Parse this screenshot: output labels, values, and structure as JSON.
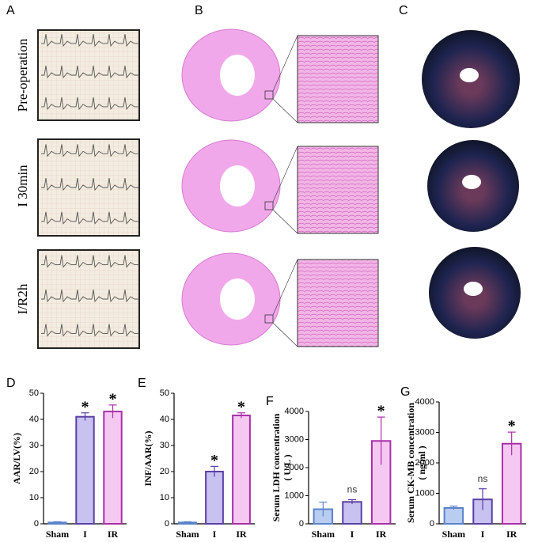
{
  "panels": {
    "A": "A",
    "B": "B",
    "C": "C",
    "rows": [
      "Pre-operation",
      "I 30min",
      "I/R2h"
    ]
  },
  "chart_data": [
    {
      "type": "bar",
      "panel_label": "D",
      "ylabel": "AAR/LV(%)",
      "categories": [
        "Sham",
        "I",
        "IR"
      ],
      "values": [
        0.5,
        41,
        43
      ],
      "errors": [
        0.3,
        1.5,
        2.5
      ],
      "ylim": [
        0,
        50
      ],
      "yticks": [
        0,
        10,
        20,
        30,
        40,
        50
      ],
      "colors": [
        "#b9cdf0",
        "#c8c2f0",
        "#f5c8f2"
      ],
      "edge_colors": [
        "#5b83c9",
        "#5b3fa6",
        "#a82fa8"
      ],
      "annotations": [
        {
          "index": 1,
          "text": "*"
        },
        {
          "index": 2,
          "text": "*"
        }
      ]
    },
    {
      "type": "bar",
      "panel_label": "E",
      "ylabel": "INF/AAR(%)",
      "categories": [
        "Sham",
        "I",
        "IR"
      ],
      "values": [
        0.5,
        20,
        41.5
      ],
      "errors": [
        0.3,
        2,
        1
      ],
      "ylim": [
        0,
        50
      ],
      "yticks": [
        0,
        10,
        20,
        30,
        40,
        50
      ],
      "colors": [
        "#b9cdf0",
        "#c8c2f0",
        "#f5c8f2"
      ],
      "edge_colors": [
        "#5b83c9",
        "#5b3fa6",
        "#a82fa8"
      ],
      "annotations": [
        {
          "index": 1,
          "text": "*"
        },
        {
          "index": 2,
          "text": "*"
        }
      ]
    },
    {
      "type": "bar",
      "panel_label": "F",
      "ylabel": "Serum LDH concentration",
      "ylabel_unit": "( U/L )",
      "categories": [
        "Sham",
        "I",
        "IR"
      ],
      "values": [
        520,
        780,
        2950
      ],
      "errors": [
        250,
        80,
        850
      ],
      "ylim": [
        0,
        4000
      ],
      "yticks": [
        0,
        1000,
        2000,
        3000,
        4000
      ],
      "colors": [
        "#b9cdf0",
        "#c8c2f0",
        "#f5c8f2"
      ],
      "edge_colors": [
        "#5b83c9",
        "#5b3fa6",
        "#a82fa8"
      ],
      "annotations": [
        {
          "index": 1,
          "text": "ns"
        },
        {
          "index": 2,
          "text": "*"
        }
      ]
    },
    {
      "type": "bar",
      "panel_label": "G",
      "ylabel": "Serum CK-MB concentration",
      "ylabel_unit": "( ng/ml )",
      "categories": [
        "Sham",
        "I",
        "IR"
      ],
      "values": [
        520,
        800,
        2630
      ],
      "errors": [
        60,
        350,
        380
      ],
      "ylim": [
        0,
        4000
      ],
      "yticks": [
        0,
        1000,
        2000,
        3000,
        4000
      ],
      "colors": [
        "#b9cdf0",
        "#c8c2f0",
        "#f5c8f2"
      ],
      "edge_colors": [
        "#5b83c9",
        "#5b3fa6",
        "#a82fa8"
      ],
      "annotations": [
        {
          "index": 1,
          "text": "ns"
        },
        {
          "index": 2,
          "text": "*"
        }
      ]
    }
  ]
}
